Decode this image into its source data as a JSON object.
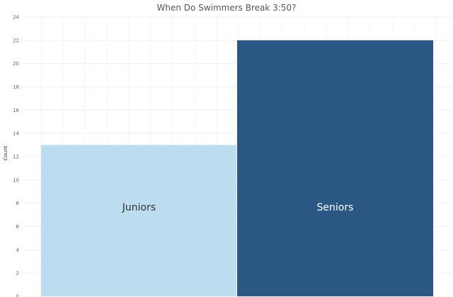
{
  "chart_data": {
    "type": "bar",
    "title": "When Do Swimmers Break 3:50?",
    "xlabel": "",
    "ylabel": "Count",
    "categories": [
      "Juniors",
      "Seniors"
    ],
    "values": [
      13,
      22
    ],
    "ylim": [
      0,
      24
    ],
    "yticks": [
      0,
      2,
      4,
      6,
      8,
      10,
      12,
      14,
      16,
      18,
      20,
      22,
      24
    ],
    "bar_colors": [
      "#bcdcf0",
      "#2a5783"
    ],
    "label_colors": [
      "#333333",
      "#ffffff"
    ],
    "grid": true,
    "legend": "none"
  }
}
